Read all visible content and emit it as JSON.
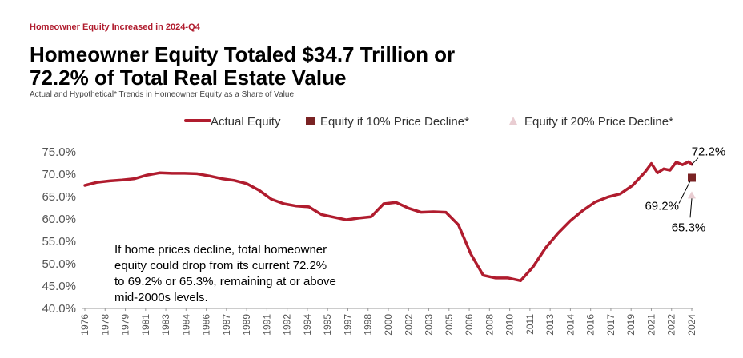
{
  "header": {
    "kicker": "Homeowner Equity Increased in 2024-Q4",
    "title_line1": "Homeowner Equity Totaled $34.7 Trillion or",
    "title_line2": "72.2% of Total Real Estate Value",
    "subtitle": "Actual and Hypothetical* Trends in Homeowner Equity as a Share of Value"
  },
  "colors": {
    "actual": "#b01c2e",
    "decline10": "#7a2324",
    "decline20": "#e9cdd2",
    "kicker": "#b01c2e"
  },
  "chart_data": {
    "type": "line",
    "title": "Homeowner Equity Totaled $34.7 Trillion or 72.2% of Total Real Estate Value",
    "subtitle": "Actual and Hypothetical* Trends in Homeowner Equity as a Share of Value",
    "xlabel": "",
    "ylabel": "",
    "ylim": [
      40,
      75
    ],
    "y_ticks": [
      "75.0%",
      "70.0%",
      "65.0%",
      "60.0%",
      "55.0%",
      "50.0%",
      "45.0%",
      "40.0%"
    ],
    "y_tick_values": [
      75,
      70,
      65,
      60,
      55,
      50,
      45,
      40
    ],
    "x_ticks": [
      "1976",
      "1978",
      "1979",
      "1981",
      "1983",
      "1984",
      "1986",
      "1987",
      "1989",
      "1991",
      "1992",
      "1994",
      "1995",
      "1997",
      "1998",
      "2000",
      "2002",
      "2003",
      "2005",
      "2006",
      "2008",
      "2010",
      "2011",
      "2013",
      "2014",
      "2016",
      "2017",
      "2019",
      "2021",
      "2022",
      "2024"
    ],
    "legend_placement": "top-right",
    "grid": false,
    "series": [
      {
        "name": "Actual Equity",
        "x": [
          1976,
          1977,
          1978,
          1979,
          1980,
          1981,
          1982,
          1983,
          1984,
          1985,
          1986,
          1987,
          1988,
          1989,
          1990,
          1991,
          1992,
          1993,
          1994,
          1995,
          1996,
          1997,
          1998,
          1999,
          2000,
          2001,
          2002,
          2003,
          2004,
          2005,
          2006,
          2007,
          2008,
          2009,
          2010,
          2011,
          2012,
          2013,
          2014,
          2015,
          2016,
          2017,
          2018,
          2019,
          2020,
          2021,
          2021.5,
          2022,
          2022.5,
          2023,
          2023.5,
          2024,
          2024.5,
          2024.75
        ],
        "values": [
          67.5,
          68.2,
          68.5,
          68.7,
          69.0,
          69.8,
          70.3,
          70.2,
          70.2,
          70.1,
          69.6,
          69.0,
          68.6,
          67.9,
          66.4,
          64.4,
          63.4,
          62.9,
          62.7,
          61.0,
          60.4,
          59.8,
          60.2,
          60.5,
          63.4,
          63.7,
          62.4,
          61.5,
          61.6,
          61.5,
          58.7,
          52.2,
          47.4,
          46.8,
          46.8,
          46.2,
          49.3,
          53.5,
          56.8,
          59.6,
          61.9,
          63.8,
          64.9,
          65.6,
          67.5,
          70.5,
          72.4,
          70.3,
          71.2,
          70.9,
          72.7,
          72.1,
          72.8,
          72.2
        ]
      },
      {
        "name": "Equity if 10% Price Decline*",
        "x": [
          2024.75
        ],
        "values": [
          69.2
        ]
      },
      {
        "name": "Equity if 20% Price Decline*",
        "x": [
          2024.75
        ],
        "values": [
          65.3
        ]
      }
    ],
    "annotations": [
      {
        "text": "72.2%",
        "x": 2024.75,
        "y": 72.2
      },
      {
        "text": "69.2%",
        "x": 2024.75,
        "y": 69.2
      },
      {
        "text": "65.3%",
        "x": 2024.75,
        "y": 65.3
      }
    ],
    "note": {
      "lines": [
        "If home prices decline, total homeowner",
        "equity could drop from its current 72.2%",
        "to 69.2% or 65.3%, remaining at or above",
        "mid-2000s levels."
      ]
    }
  }
}
